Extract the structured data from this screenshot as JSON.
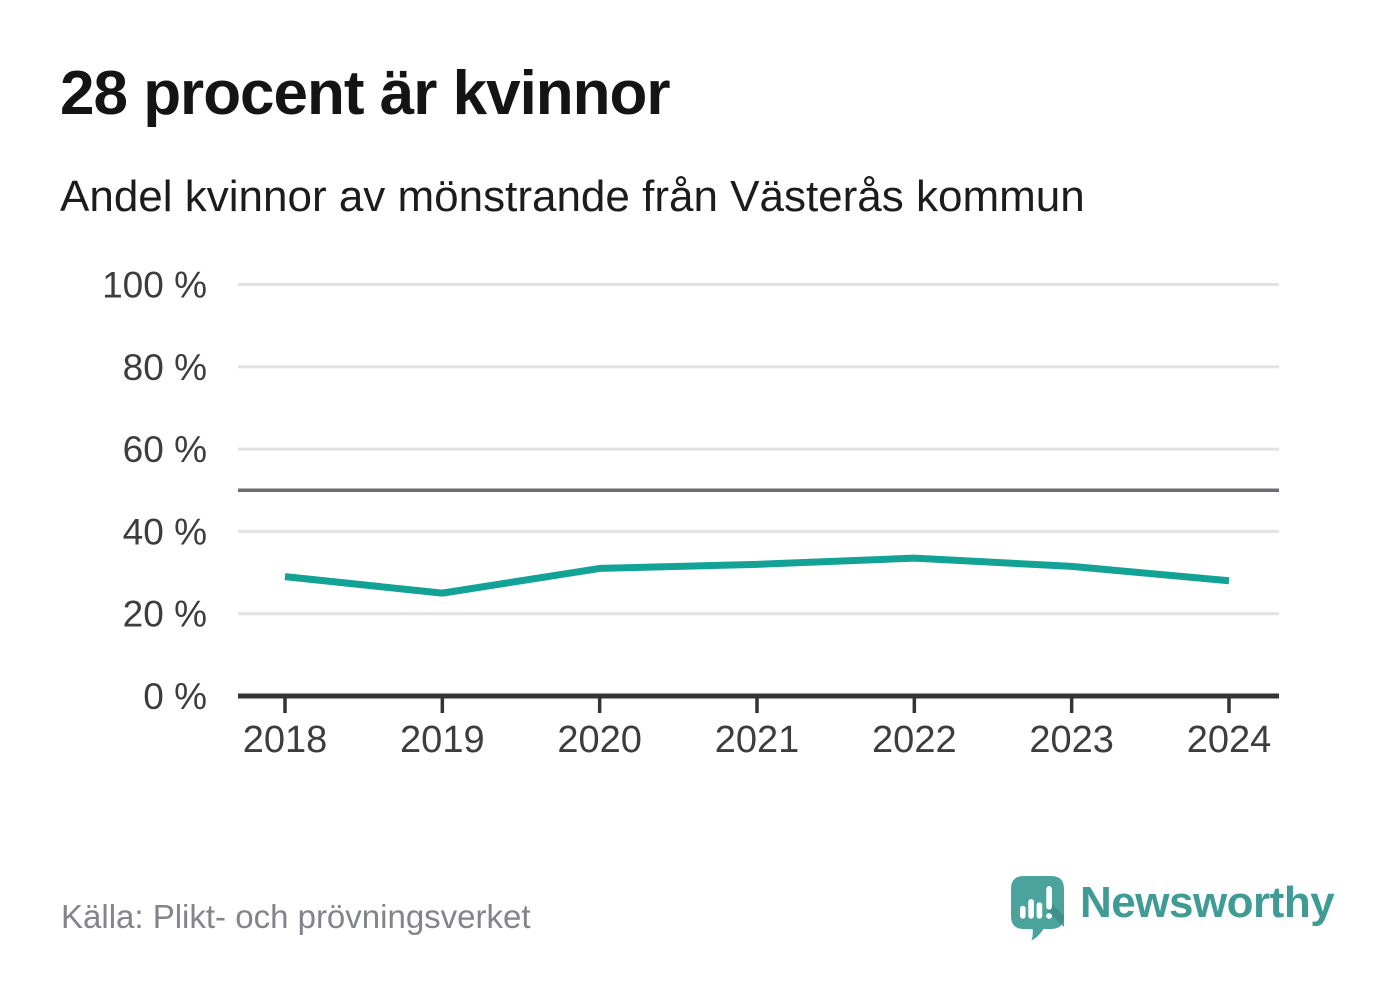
{
  "header": {
    "title": "28 procent är kvinnor",
    "subtitle": "Andel kvinnor av mönstrande från Västerås kommun"
  },
  "footer": {
    "source": "Källa: Plikt- och prövningsverket",
    "brand": "Newsworthy"
  },
  "colors": {
    "line": "#12a296",
    "grid": "#e2e2e2",
    "reference": "#6c6c74",
    "axis": "#343437",
    "tick": "#343437",
    "label": "#3d3d3d",
    "logo_bubble": "#4aa39c",
    "logo_shade": "#3b8d87",
    "brand_text": "#3f9c95"
  },
  "chart_data": {
    "type": "line",
    "title": "28 procent är kvinnor",
    "subtitle": "Andel kvinnor av mönstrande från Västerås kommun",
    "categories": [
      "2018",
      "2019",
      "2020",
      "2021",
      "2022",
      "2023",
      "2024"
    ],
    "series": [
      {
        "name": "Andel kvinnor av mönstrande",
        "values": [
          29,
          25,
          31,
          32,
          33.5,
          31.5,
          28
        ]
      }
    ],
    "xlabel": "",
    "ylabel": "",
    "ylim": [
      0,
      100
    ],
    "yticks": [
      0,
      20,
      40,
      60,
      80,
      100
    ],
    "ytick_suffix": " %",
    "reference_line": 50,
    "grid": "horizontal",
    "legend": "none",
    "source": "Källa: Plikt- och prövningsverket"
  }
}
